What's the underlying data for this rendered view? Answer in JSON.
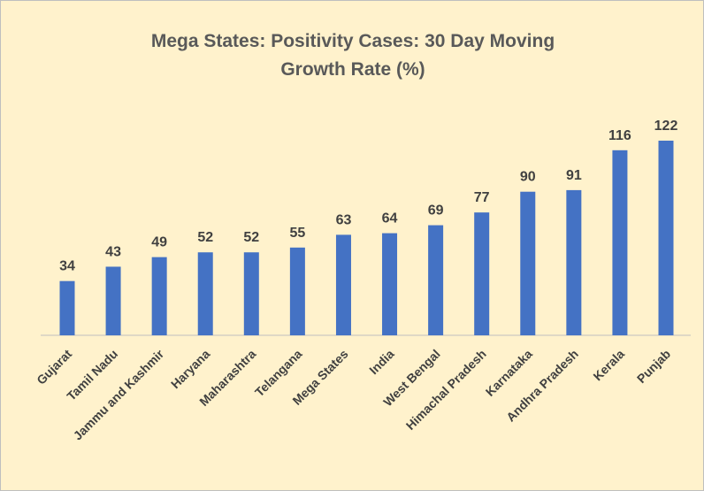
{
  "chart_data": {
    "type": "bar",
    "title": "Mega States: Positivity Cases: 30 Day Moving Growth Rate (%)",
    "categories": [
      "Gujarat",
      "Tamil Nadu",
      "Jammu and Kashmir",
      "Haryana",
      "Maharashtra",
      "Telangana",
      "Mega States",
      "India",
      "West Bengal",
      "Himachal Pradesh",
      "Karnataka",
      "Andhra Pradesh",
      "Kerala",
      "Punjab"
    ],
    "values": [
      34,
      43,
      49,
      52,
      52,
      55,
      63,
      64,
      69,
      77,
      90,
      91,
      116,
      122
    ],
    "color": "#4472c4"
  }
}
